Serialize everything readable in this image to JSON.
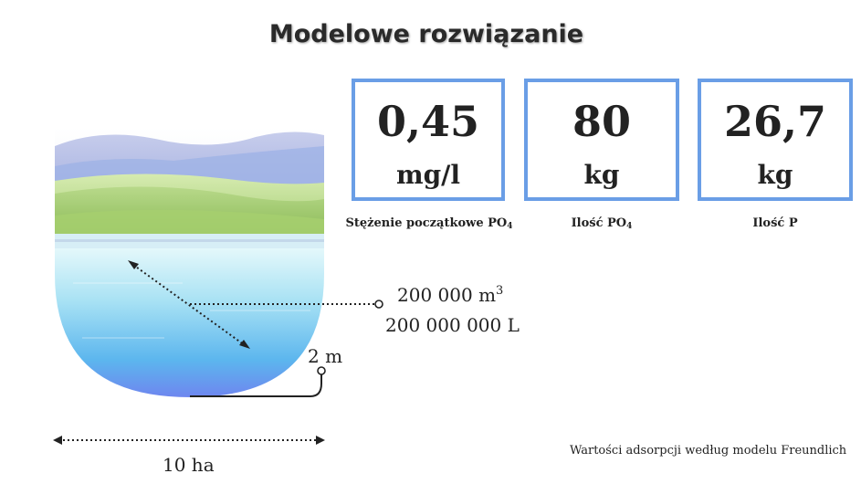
{
  "title": "Modelowe rozwiązanie",
  "boxes": [
    {
      "value": "0,45",
      "unit": "mg/l",
      "caption": "Stężenie początkowe PO",
      "caption_sub": "4"
    },
    {
      "value": "80",
      "unit": "kg",
      "caption": "Ilość PO",
      "caption_sub": "4"
    },
    {
      "value": "26,7",
      "unit": "kg",
      "caption": "Ilość P",
      "caption_sub": ""
    }
  ],
  "lake": {
    "volume_m3": "200 000 m",
    "volume_m3_exp": "3",
    "volume_l": "200 000 000 L",
    "depth": "2 m",
    "area": "10 ha"
  },
  "note": "Wartości adsorpcji według modelu Freundlich",
  "colors": {
    "box_border": "#6a9ee6",
    "water_top": "#d8f4fb",
    "water_bottom": "#6f8df0",
    "hills": "#8cc05a",
    "mountains": "#a8b4e0"
  }
}
